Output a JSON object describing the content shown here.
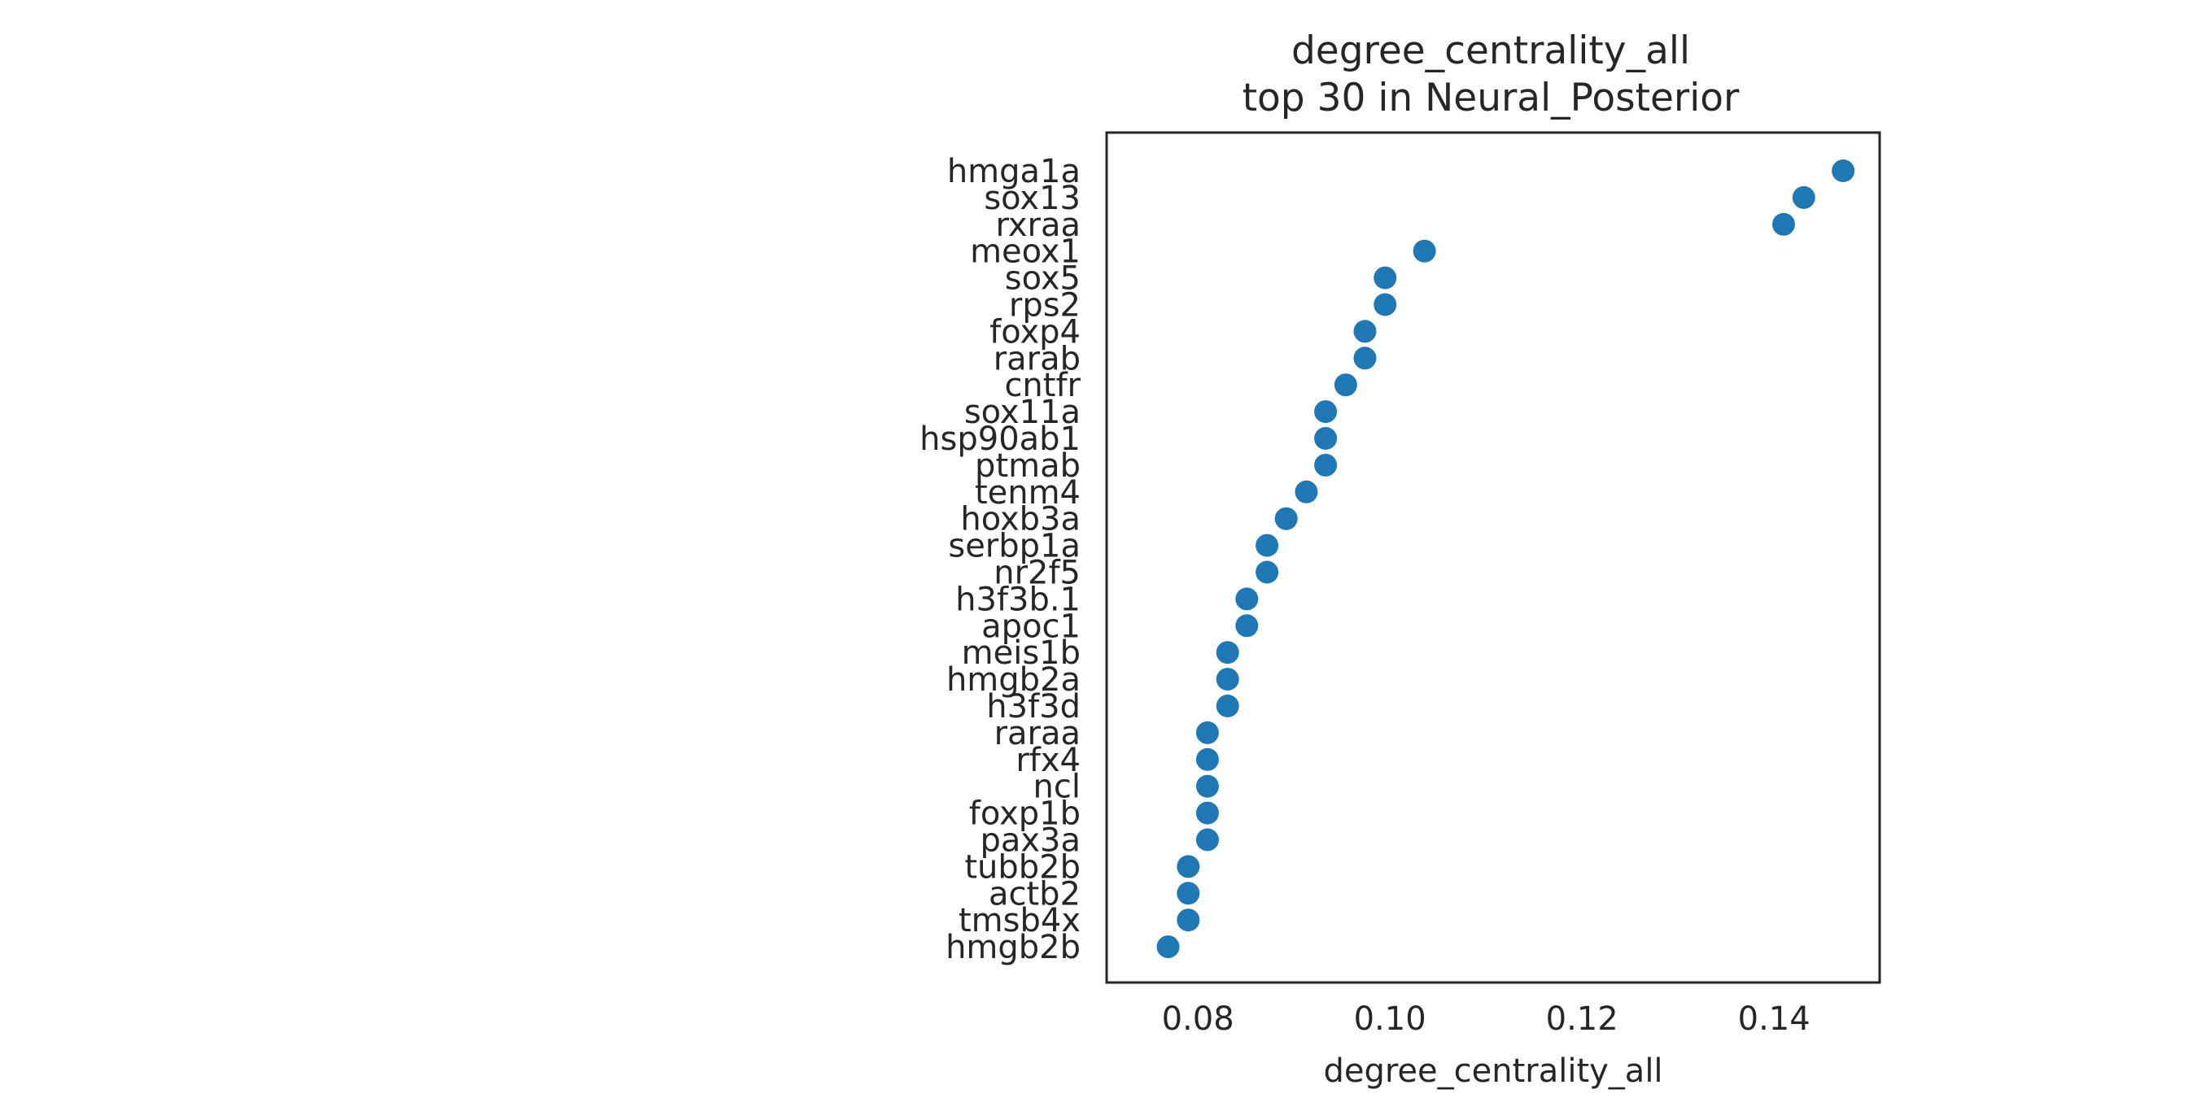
{
  "chart_data": {
    "type": "scatter",
    "title_line1": "degree_centrality_all",
    "title_line2": "top 30 in Neural_Posterior",
    "xlabel": "degree_centrality_all",
    "ylabel": "",
    "xlim": [
      0.0705,
      0.151
    ],
    "xticks": [
      0.08,
      0.1,
      0.12,
      0.14
    ],
    "xtick_labels": [
      "0.08",
      "0.10",
      "0.12",
      "0.14"
    ],
    "grid": false,
    "marker_color": "#1f77b4",
    "categories": [
      "hmga1a",
      "sox13",
      "rxraa",
      "meox1",
      "sox5",
      "rps2",
      "foxp4",
      "rarab",
      "cntfr",
      "sox11a",
      "hsp90ab1",
      "ptmab",
      "tenm4",
      "hoxb3a",
      "serbp1a",
      "nr2f5",
      "h3f3b.1",
      "apoc1",
      "meis1b",
      "hmgb2a",
      "h3f3d",
      "raraa",
      "rfx4",
      "ncl",
      "foxp1b",
      "pax3a",
      "tubb2b",
      "actb2",
      "tmsb4x",
      "hmgb2b"
    ],
    "values": [
      0.1472,
      0.1431,
      0.141,
      0.1036,
      0.0995,
      0.0995,
      0.0974,
      0.0974,
      0.0954,
      0.0933,
      0.0933,
      0.0933,
      0.0913,
      0.0892,
      0.0872,
      0.0872,
      0.0851,
      0.0851,
      0.0831,
      0.0831,
      0.0831,
      0.081,
      0.081,
      0.081,
      0.081,
      0.081,
      0.079,
      0.079,
      0.079,
      0.0769
    ]
  }
}
